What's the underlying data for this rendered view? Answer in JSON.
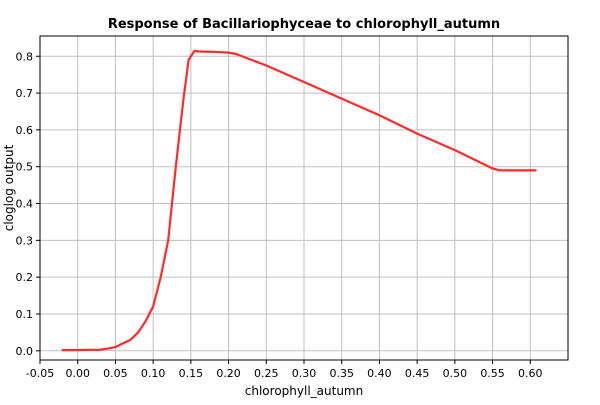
{
  "chart_data": {
    "type": "line",
    "title": "Response of Bacillariophyceae to chlorophyll_autumn",
    "xlabel": "chlorophyll_autumn",
    "ylabel": "cloglog output",
    "xlim": [
      -0.05,
      0.65
    ],
    "ylim": [
      -0.025,
      0.855
    ],
    "x_ticks": [
      -0.05,
      0.0,
      0.05,
      0.1,
      0.15,
      0.2,
      0.25,
      0.3,
      0.35,
      0.4,
      0.45,
      0.5,
      0.55,
      0.6
    ],
    "x_tick_labels": [
      "-0.05",
      "0.00",
      "0.05",
      "0.10",
      "0.15",
      "0.20",
      "0.25",
      "0.30",
      "0.35",
      "0.40",
      "0.45",
      "0.50",
      "0.55",
      "0.60"
    ],
    "y_ticks": [
      0.0,
      0.1,
      0.2,
      0.3,
      0.4,
      0.5,
      0.6,
      0.7,
      0.8
    ],
    "y_tick_labels": [
      "0.0",
      "0.1",
      "0.2",
      "0.3",
      "0.4",
      "0.5",
      "0.6",
      "0.7",
      "0.8"
    ],
    "grid": true,
    "series": [
      {
        "color": "#ff2a2a",
        "x": [
          -0.02,
          0.0,
          0.03,
          0.04,
          0.05,
          0.06,
          0.07,
          0.08,
          0.09,
          0.1,
          0.11,
          0.12,
          0.13,
          0.14,
          0.147,
          0.155,
          0.16,
          0.18,
          0.2,
          0.21,
          0.25,
          0.3,
          0.35,
          0.4,
          0.45,
          0.5,
          0.55,
          0.56,
          0.6,
          0.607
        ],
        "y": [
          0.002,
          0.002,
          0.003,
          0.006,
          0.01,
          0.02,
          0.03,
          0.05,
          0.08,
          0.12,
          0.2,
          0.3,
          0.5,
          0.68,
          0.79,
          0.815,
          0.813,
          0.812,
          0.81,
          0.806,
          0.775,
          0.73,
          0.685,
          0.64,
          0.59,
          0.545,
          0.495,
          0.49,
          0.49,
          0.49
        ]
      }
    ]
  }
}
